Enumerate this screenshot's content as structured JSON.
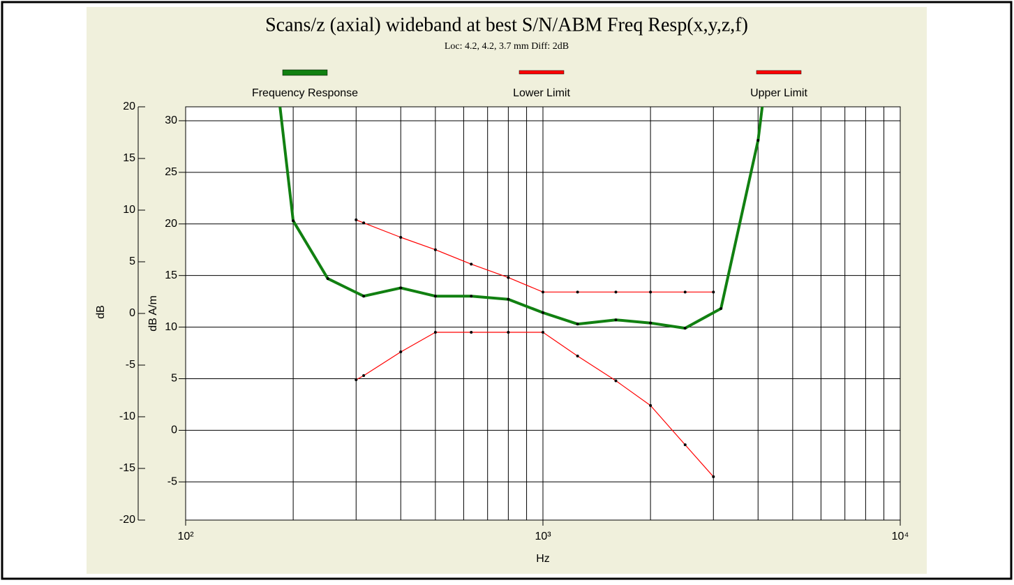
{
  "chart_data": {
    "type": "line",
    "title": "Scans/z (axial) wideband at best S/N/ABM Freq Resp(x,y,z,f)",
    "subtitle": "Loc: 4.2, 4.2, 3.7 mm Diff: 2dB",
    "xlabel": "Hz",
    "ylabel": "dB A/m",
    "y2label": "dB",
    "xscale": "log",
    "xlim": [
      100,
      10000
    ],
    "xticks": [
      {
        "value": 100,
        "label": "10²"
      },
      {
        "value": 1000,
        "label": "10³"
      },
      {
        "value": 10000,
        "label": "10⁴"
      }
    ],
    "ylim": [
      -8.7,
      31.35
    ],
    "yticks": [
      -5,
      0,
      5,
      10,
      15,
      20,
      25,
      30
    ],
    "y2lim": [
      -20,
      20
    ],
    "y2ticks": [
      -20,
      -15,
      -10,
      -5,
      0,
      5,
      10,
      15,
      20
    ],
    "grid": true,
    "legend": "top",
    "series": [
      {
        "name": "Frequency Response",
        "color": "#118011",
        "x": [
          180,
          200,
          250,
          315,
          400,
          500,
          630,
          800,
          1000,
          1250,
          1600,
          2000,
          2500,
          3150,
          4000,
          4200
        ],
        "values": [
          34,
          20.3,
          14.7,
          13.0,
          13.8,
          13.0,
          13.0,
          12.7,
          11.4,
          10.3,
          10.7,
          10.4,
          9.9,
          11.8,
          28.1,
          34
        ]
      },
      {
        "name": "Lower Limit",
        "color": "#ff0000",
        "x": [
          300,
          315,
          400,
          500,
          630,
          800,
          1000,
          1250,
          1600,
          2000,
          2500,
          3000
        ],
        "values": [
          4.9,
          5.3,
          7.6,
          9.5,
          9.5,
          9.5,
          9.5,
          7.2,
          4.8,
          2.4,
          -1.4,
          -4.5
        ]
      },
      {
        "name": "Upper Limit",
        "color": "#ff0000",
        "x": [
          300,
          315,
          400,
          500,
          630,
          800,
          1000,
          1250,
          1600,
          2000,
          2500,
          3000
        ],
        "values": [
          20.4,
          20.1,
          18.7,
          17.5,
          16.1,
          14.8,
          13.4,
          13.4,
          13.4,
          13.4,
          13.4,
          13.4
        ]
      }
    ]
  }
}
